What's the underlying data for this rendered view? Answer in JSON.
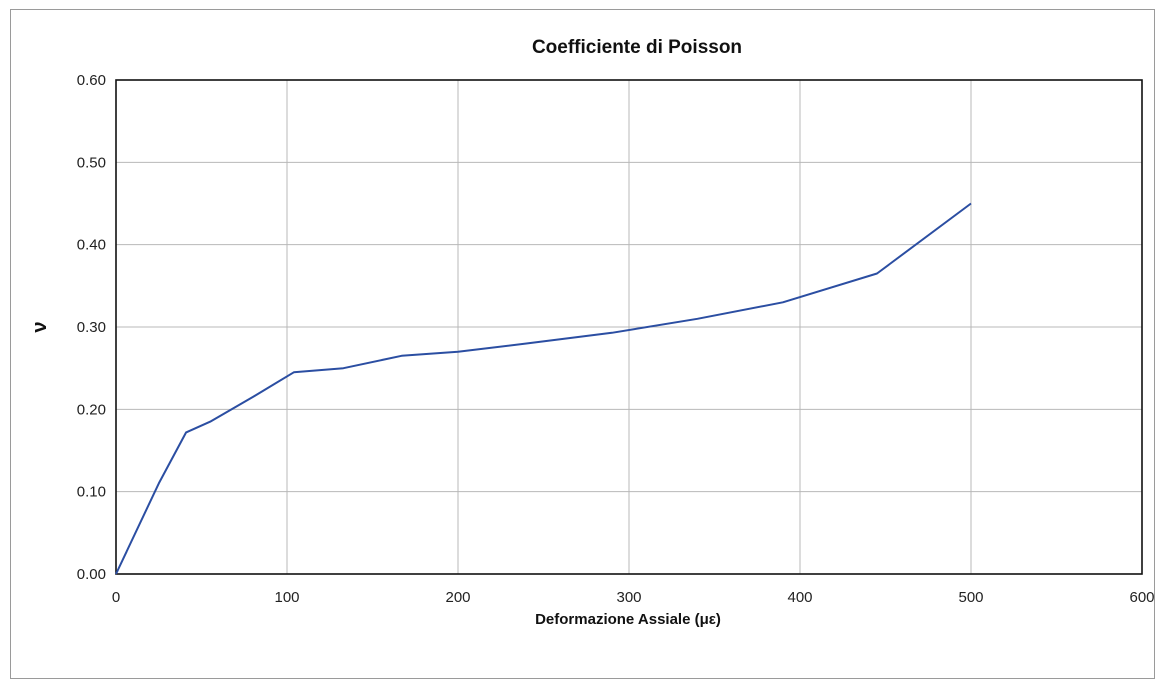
{
  "chart_data": {
    "type": "line",
    "title": "Coefficiente di Poisson",
    "xlabel": "Deformazione Assiale (με)",
    "ylabel": "ν",
    "xlim": [
      0,
      600
    ],
    "ylim": [
      0,
      0.6
    ],
    "x_ticks": [
      "0",
      "100",
      "200",
      "300",
      "400",
      "500",
      "600"
    ],
    "y_ticks": [
      "0.00",
      "0.10",
      "0.20",
      "0.30",
      "0.40",
      "0.50",
      "0.60"
    ],
    "x_tick_values": [
      0,
      100,
      200,
      300,
      400,
      500,
      600
    ],
    "y_tick_values": [
      0,
      0.1,
      0.2,
      0.3,
      0.4,
      0.5,
      0.6
    ],
    "grid": true,
    "legend": "none",
    "series": [
      {
        "color": "#2b4ea2",
        "x": [
          0,
          25,
          41,
          55,
          80,
          104,
          133,
          167,
          200,
          240,
          290,
          340,
          390,
          445,
          500
        ],
        "y": [
          0.0,
          0.11,
          0.172,
          0.185,
          0.215,
          0.245,
          0.25,
          0.265,
          0.27,
          0.28,
          0.293,
          0.31,
          0.33,
          0.365,
          0.45
        ]
      }
    ]
  }
}
